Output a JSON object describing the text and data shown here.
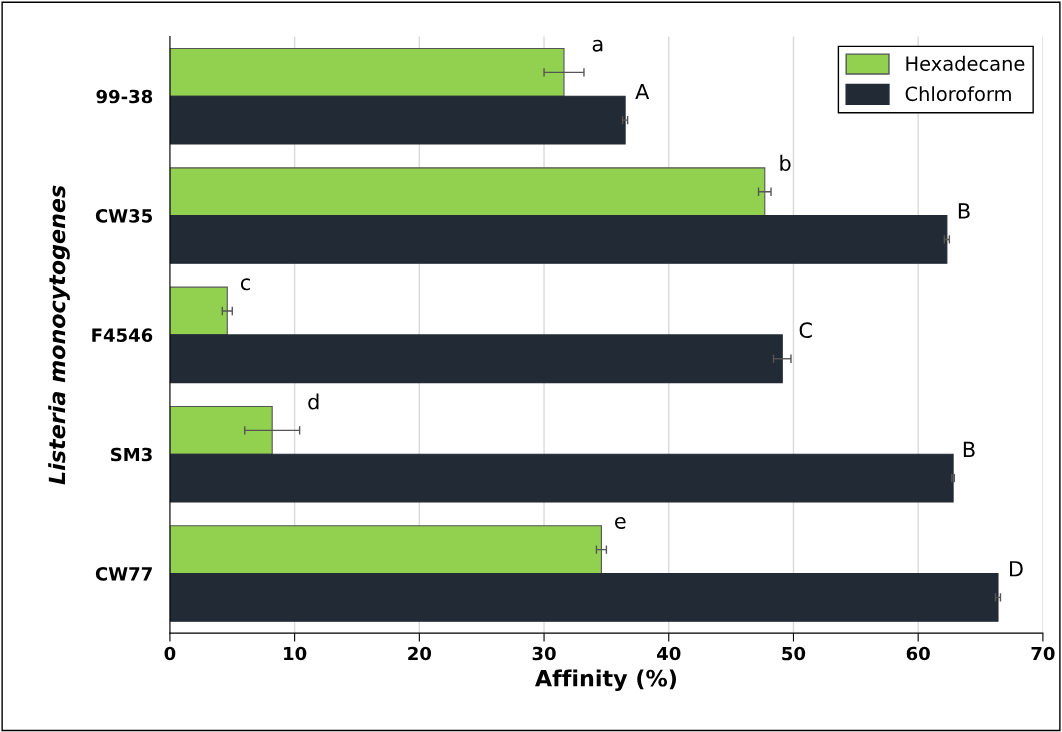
{
  "chart_data": {
    "type": "bar",
    "orientation": "horizontal",
    "xlabel": "Affinity (%)",
    "ylabel": "Listeria monocytogenes",
    "categories": [
      "99-38",
      "CW35",
      "F4546",
      "SM3",
      "CW77"
    ],
    "series": [
      {
        "name": "Hexadecane",
        "color": "#92d050",
        "values": [
          31.6,
          47.7,
          4.6,
          8.2,
          34.6
        ],
        "errors": [
          1.6,
          0.5,
          0.4,
          2.2,
          0.4
        ],
        "value_labels": [
          "a",
          "b",
          "c",
          "d",
          "e"
        ]
      },
      {
        "name": "Chloroform",
        "color": "#222a35",
        "values": [
          36.5,
          62.3,
          49.1,
          62.8,
          66.4
        ],
        "errors": [
          0.2,
          0.2,
          0.7,
          0.1,
          0.2
        ],
        "value_labels": [
          "A",
          "B",
          "C",
          "B",
          "D"
        ]
      }
    ],
    "xlim": [
      0,
      70
    ],
    "xticks": [
      0,
      10,
      20,
      30,
      40,
      50,
      60,
      70
    ],
    "grid": "x",
    "legend": "top right"
  }
}
